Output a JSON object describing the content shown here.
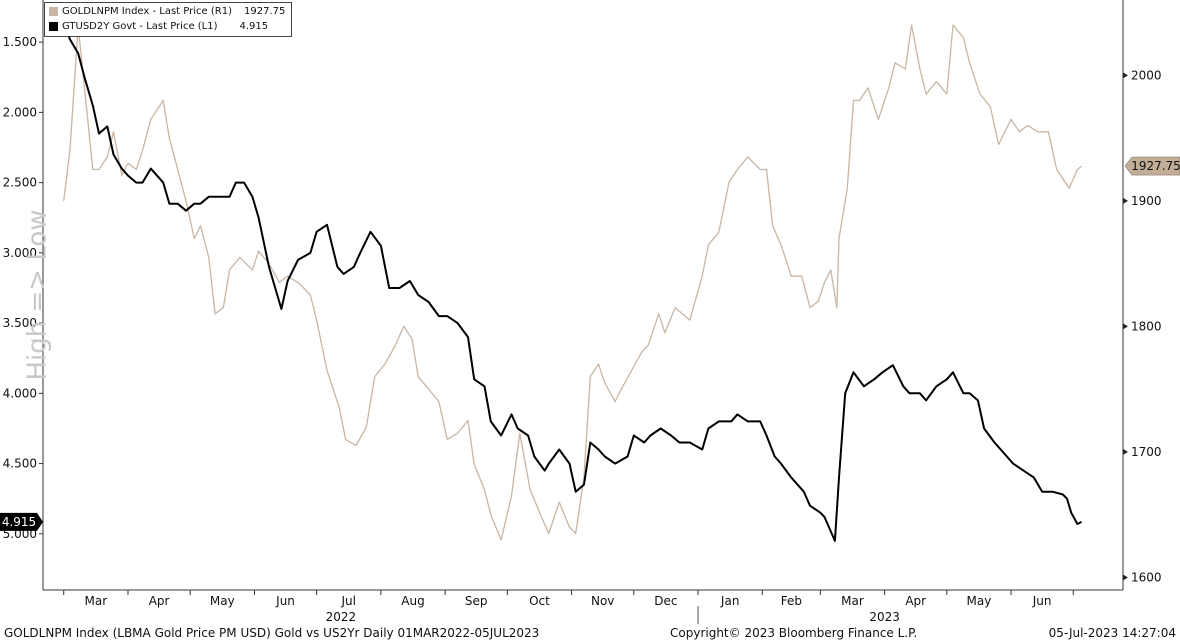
{
  "legend": {
    "gold_label": "GOLDLNPM Index - Last Price (R1)",
    "gold_value": "1927.75",
    "us2y_label": "GTUSD2Y Govt - Last Price (L1)",
    "us2y_value": "4.915"
  },
  "left_axis_title": "High => Low",
  "footer": {
    "left": "GOLDLNPM Index (LBMA Gold Price PM USD) Gold vs US2Yr  Daily 01MAR2022-05JUL2023",
    "center": "Copyright© 2023 Bloomberg Finance L.P.",
    "right": "05-Jul-2023 14:27:04"
  },
  "colors": {
    "gold": "#c8b6a6",
    "us2y": "#000000",
    "gold_tag": "#c2ad97"
  },
  "chart_data": {
    "type": "line",
    "title": "",
    "x_range": [
      "2022-03-01",
      "2023-07-05"
    ],
    "x_months": [
      "Mar",
      "Apr",
      "May",
      "Jun",
      "Jul",
      "Aug",
      "Sep",
      "Oct",
      "Nov",
      "Dec",
      "Jan",
      "Feb",
      "Mar",
      "Apr",
      "May",
      "Jun"
    ],
    "x_years": [
      "2022",
      "2023"
    ],
    "left_axis": {
      "ylim_inverted": [
        5.4,
        1.2
      ],
      "ticks": [
        "1.500",
        "2.000",
        "2.500",
        "3.000",
        "3.500",
        "4.000",
        "4.500",
        "5.000"
      ],
      "label": "High => Low"
    },
    "right_axis": {
      "ylim": [
        1590,
        2060
      ],
      "ticks": [
        "1600",
        "1700",
        "1800",
        "1900",
        "2000"
      ]
    },
    "last_value_tags": {
      "left": "4.915",
      "right": "1927.75"
    },
    "series": [
      {
        "name": "GOLDLNPM Index - Last Price (R1)",
        "axis": "right",
        "points": [
          [
            "2022-03-01",
            1900
          ],
          [
            "2022-03-04",
            1940
          ],
          [
            "2022-03-08",
            2039
          ],
          [
            "2022-03-11",
            1990
          ],
          [
            "2022-03-15",
            1925
          ],
          [
            "2022-03-18",
            1925
          ],
          [
            "2022-03-22",
            1935
          ],
          [
            "2022-03-25",
            1955
          ],
          [
            "2022-03-29",
            1920
          ],
          [
            "2022-04-01",
            1930
          ],
          [
            "2022-04-05",
            1925
          ],
          [
            "2022-04-08",
            1940
          ],
          [
            "2022-04-12",
            1965
          ],
          [
            "2022-04-18",
            1980
          ],
          [
            "2022-04-21",
            1950
          ],
          [
            "2022-04-25",
            1925
          ],
          [
            "2022-04-29",
            1900
          ],
          [
            "2022-05-03",
            1870
          ],
          [
            "2022-05-06",
            1880
          ],
          [
            "2022-05-10",
            1855
          ],
          [
            "2022-05-13",
            1810
          ],
          [
            "2022-05-17",
            1815
          ],
          [
            "2022-05-20",
            1845
          ],
          [
            "2022-05-25",
            1855
          ],
          [
            "2022-05-31",
            1845
          ],
          [
            "2022-06-03",
            1860
          ],
          [
            "2022-06-08",
            1850
          ],
          [
            "2022-06-13",
            1835
          ],
          [
            "2022-06-17",
            1840
          ],
          [
            "2022-06-22",
            1835
          ],
          [
            "2022-06-28",
            1825
          ],
          [
            "2022-07-01",
            1805
          ],
          [
            "2022-07-06",
            1765
          ],
          [
            "2022-07-12",
            1735
          ],
          [
            "2022-07-15",
            1710
          ],
          [
            "2022-07-20",
            1705
          ],
          [
            "2022-07-25",
            1720
          ],
          [
            "2022-07-29",
            1760
          ],
          [
            "2022-08-03",
            1770
          ],
          [
            "2022-08-08",
            1785
          ],
          [
            "2022-08-12",
            1800
          ],
          [
            "2022-08-16",
            1790
          ],
          [
            "2022-08-19",
            1760
          ],
          [
            "2022-08-24",
            1750
          ],
          [
            "2022-08-29",
            1740
          ],
          [
            "2022-09-02",
            1710
          ],
          [
            "2022-09-07",
            1715
          ],
          [
            "2022-09-12",
            1725
          ],
          [
            "2022-09-15",
            1690
          ],
          [
            "2022-09-20",
            1670
          ],
          [
            "2022-09-23",
            1650
          ],
          [
            "2022-09-28",
            1630
          ],
          [
            "2022-10-03",
            1665
          ],
          [
            "2022-10-07",
            1715
          ],
          [
            "2022-10-12",
            1670
          ],
          [
            "2022-10-17",
            1650
          ],
          [
            "2022-10-21",
            1635
          ],
          [
            "2022-10-26",
            1660
          ],
          [
            "2022-10-31",
            1640
          ],
          [
            "2022-11-03",
            1635
          ],
          [
            "2022-11-07",
            1680
          ],
          [
            "2022-11-10",
            1760
          ],
          [
            "2022-11-14",
            1770
          ],
          [
            "2022-11-17",
            1755
          ],
          [
            "2022-11-22",
            1740
          ],
          [
            "2022-11-25",
            1750
          ],
          [
            "2022-11-30",
            1765
          ],
          [
            "2022-12-05",
            1780
          ],
          [
            "2022-12-08",
            1785
          ],
          [
            "2022-12-13",
            1810
          ],
          [
            "2022-12-16",
            1795
          ],
          [
            "2022-12-21",
            1815
          ],
          [
            "2022-12-28",
            1805
          ],
          [
            "2023-01-03",
            1840
          ],
          [
            "2023-01-06",
            1865
          ],
          [
            "2023-01-11",
            1875
          ],
          [
            "2023-01-16",
            1915
          ],
          [
            "2023-01-20",
            1925
          ],
          [
            "2023-01-25",
            1935
          ],
          [
            "2023-01-31",
            1925
          ],
          [
            "2023-02-03",
            1925
          ],
          [
            "2023-02-06",
            1880
          ],
          [
            "2023-02-10",
            1865
          ],
          [
            "2023-02-15",
            1840
          ],
          [
            "2023-02-20",
            1840
          ],
          [
            "2023-02-24",
            1815
          ],
          [
            "2023-02-28",
            1820
          ],
          [
            "2023-03-03",
            1835
          ],
          [
            "2023-03-06",
            1845
          ],
          [
            "2023-03-09",
            1815
          ],
          [
            "2023-03-10",
            1870
          ],
          [
            "2023-03-14",
            1910
          ],
          [
            "2023-03-17",
            1980
          ],
          [
            "2023-03-20",
            1980
          ],
          [
            "2023-03-24",
            1990
          ],
          [
            "2023-03-29",
            1965
          ],
          [
            "2023-04-03",
            1990
          ],
          [
            "2023-04-06",
            2010
          ],
          [
            "2023-04-11",
            2005
          ],
          [
            "2023-04-14",
            2040
          ],
          [
            "2023-04-18",
            2005
          ],
          [
            "2023-04-21",
            1985
          ],
          [
            "2023-04-26",
            1995
          ],
          [
            "2023-05-01",
            1985
          ],
          [
            "2023-05-04",
            2040
          ],
          [
            "2023-05-09",
            2030
          ],
          [
            "2023-05-12",
            2010
          ],
          [
            "2023-05-17",
            1985
          ],
          [
            "2023-05-22",
            1975
          ],
          [
            "2023-05-26",
            1945
          ],
          [
            "2023-06-01",
            1965
          ],
          [
            "2023-06-05",
            1955
          ],
          [
            "2023-06-09",
            1960
          ],
          [
            "2023-06-14",
            1955
          ],
          [
            "2023-06-19",
            1955
          ],
          [
            "2023-06-23",
            1925
          ],
          [
            "2023-06-27",
            1915
          ],
          [
            "2023-06-29",
            1910
          ],
          [
            "2023-07-03",
            1925
          ],
          [
            "2023-07-05",
            1927.75
          ]
        ]
      },
      {
        "name": "GTUSD2Y Govt - Last Price (L1)",
        "axis": "left",
        "points": [
          [
            "2022-03-01",
            1.35
          ],
          [
            "2022-03-04",
            1.48
          ],
          [
            "2022-03-08",
            1.58
          ],
          [
            "2022-03-11",
            1.75
          ],
          [
            "2022-03-15",
            1.95
          ],
          [
            "2022-03-18",
            2.15
          ],
          [
            "2022-03-22",
            2.1
          ],
          [
            "2022-03-25",
            2.3
          ],
          [
            "2022-03-29",
            2.4
          ],
          [
            "2022-04-01",
            2.45
          ],
          [
            "2022-04-05",
            2.5
          ],
          [
            "2022-04-08",
            2.5
          ],
          [
            "2022-04-12",
            2.4
          ],
          [
            "2022-04-15",
            2.45
          ],
          [
            "2022-04-18",
            2.5
          ],
          [
            "2022-04-21",
            2.65
          ],
          [
            "2022-04-25",
            2.65
          ],
          [
            "2022-04-29",
            2.7
          ],
          [
            "2022-05-03",
            2.65
          ],
          [
            "2022-05-06",
            2.65
          ],
          [
            "2022-05-10",
            2.6
          ],
          [
            "2022-05-13",
            2.6
          ],
          [
            "2022-05-17",
            2.6
          ],
          [
            "2022-05-20",
            2.6
          ],
          [
            "2022-05-23",
            2.5
          ],
          [
            "2022-05-27",
            2.5
          ],
          [
            "2022-05-31",
            2.6
          ],
          [
            "2022-06-03",
            2.75
          ],
          [
            "2022-06-08",
            3.1
          ],
          [
            "2022-06-14",
            3.4
          ],
          [
            "2022-06-17",
            3.2
          ],
          [
            "2022-06-22",
            3.05
          ],
          [
            "2022-06-28",
            3.0
          ],
          [
            "2022-07-01",
            2.85
          ],
          [
            "2022-07-06",
            2.8
          ],
          [
            "2022-07-11",
            3.1
          ],
          [
            "2022-07-14",
            3.15
          ],
          [
            "2022-07-19",
            3.1
          ],
          [
            "2022-07-22",
            3.0
          ],
          [
            "2022-07-27",
            2.85
          ],
          [
            "2022-08-01",
            2.95
          ],
          [
            "2022-08-05",
            3.25
          ],
          [
            "2022-08-10",
            3.25
          ],
          [
            "2022-08-15",
            3.2
          ],
          [
            "2022-08-19",
            3.3
          ],
          [
            "2022-08-24",
            3.35
          ],
          [
            "2022-08-29",
            3.45
          ],
          [
            "2022-09-02",
            3.45
          ],
          [
            "2022-09-07",
            3.5
          ],
          [
            "2022-09-12",
            3.6
          ],
          [
            "2022-09-15",
            3.9
          ],
          [
            "2022-09-20",
            3.95
          ],
          [
            "2022-09-23",
            4.2
          ],
          [
            "2022-09-28",
            4.3
          ],
          [
            "2022-10-03",
            4.15
          ],
          [
            "2022-10-06",
            4.25
          ],
          [
            "2022-10-11",
            4.3
          ],
          [
            "2022-10-14",
            4.45
          ],
          [
            "2022-10-19",
            4.55
          ],
          [
            "2022-10-21",
            4.5
          ],
          [
            "2022-10-26",
            4.4
          ],
          [
            "2022-10-31",
            4.5
          ],
          [
            "2022-11-03",
            4.7
          ],
          [
            "2022-11-07",
            4.65
          ],
          [
            "2022-11-10",
            4.35
          ],
          [
            "2022-11-14",
            4.4
          ],
          [
            "2022-11-17",
            4.45
          ],
          [
            "2022-11-22",
            4.5
          ],
          [
            "2022-11-28",
            4.45
          ],
          [
            "2022-12-01",
            4.3
          ],
          [
            "2022-12-06",
            4.35
          ],
          [
            "2022-12-09",
            4.3
          ],
          [
            "2022-12-14",
            4.25
          ],
          [
            "2022-12-19",
            4.3
          ],
          [
            "2022-12-23",
            4.35
          ],
          [
            "2022-12-28",
            4.35
          ],
          [
            "2023-01-03",
            4.4
          ],
          [
            "2023-01-06",
            4.25
          ],
          [
            "2023-01-11",
            4.2
          ],
          [
            "2023-01-17",
            4.2
          ],
          [
            "2023-01-20",
            4.15
          ],
          [
            "2023-01-25",
            4.2
          ],
          [
            "2023-01-31",
            4.2
          ],
          [
            "2023-02-03",
            4.3
          ],
          [
            "2023-02-07",
            4.45
          ],
          [
            "2023-02-10",
            4.5
          ],
          [
            "2023-02-15",
            4.6
          ],
          [
            "2023-02-21",
            4.7
          ],
          [
            "2023-02-24",
            4.8
          ],
          [
            "2023-03-01",
            4.85
          ],
          [
            "2023-03-03",
            4.88
          ],
          [
            "2023-03-08",
            5.05
          ],
          [
            "2023-03-10",
            4.6
          ],
          [
            "2023-03-13",
            4.0
          ],
          [
            "2023-03-17",
            3.85
          ],
          [
            "2023-03-22",
            3.95
          ],
          [
            "2023-03-27",
            3.9
          ],
          [
            "2023-03-31",
            3.85
          ],
          [
            "2023-04-05",
            3.8
          ],
          [
            "2023-04-10",
            3.95
          ],
          [
            "2023-04-13",
            4.0
          ],
          [
            "2023-04-18",
            4.0
          ],
          [
            "2023-04-21",
            4.05
          ],
          [
            "2023-04-26",
            3.95
          ],
          [
            "2023-05-01",
            3.9
          ],
          [
            "2023-05-04",
            3.85
          ],
          [
            "2023-05-09",
            4.0
          ],
          [
            "2023-05-12",
            4.0
          ],
          [
            "2023-05-16",
            4.05
          ],
          [
            "2023-05-19",
            4.25
          ],
          [
            "2023-05-24",
            4.35
          ],
          [
            "2023-05-30",
            4.45
          ],
          [
            "2023-06-02",
            4.5
          ],
          [
            "2023-06-07",
            4.55
          ],
          [
            "2023-06-12",
            4.6
          ],
          [
            "2023-06-16",
            4.7
          ],
          [
            "2023-06-21",
            4.7
          ],
          [
            "2023-06-26",
            4.72
          ],
          [
            "2023-06-28",
            4.75
          ],
          [
            "2023-06-30",
            4.85
          ],
          [
            "2023-07-03",
            4.93
          ],
          [
            "2023-07-05",
            4.915
          ]
        ]
      }
    ]
  }
}
